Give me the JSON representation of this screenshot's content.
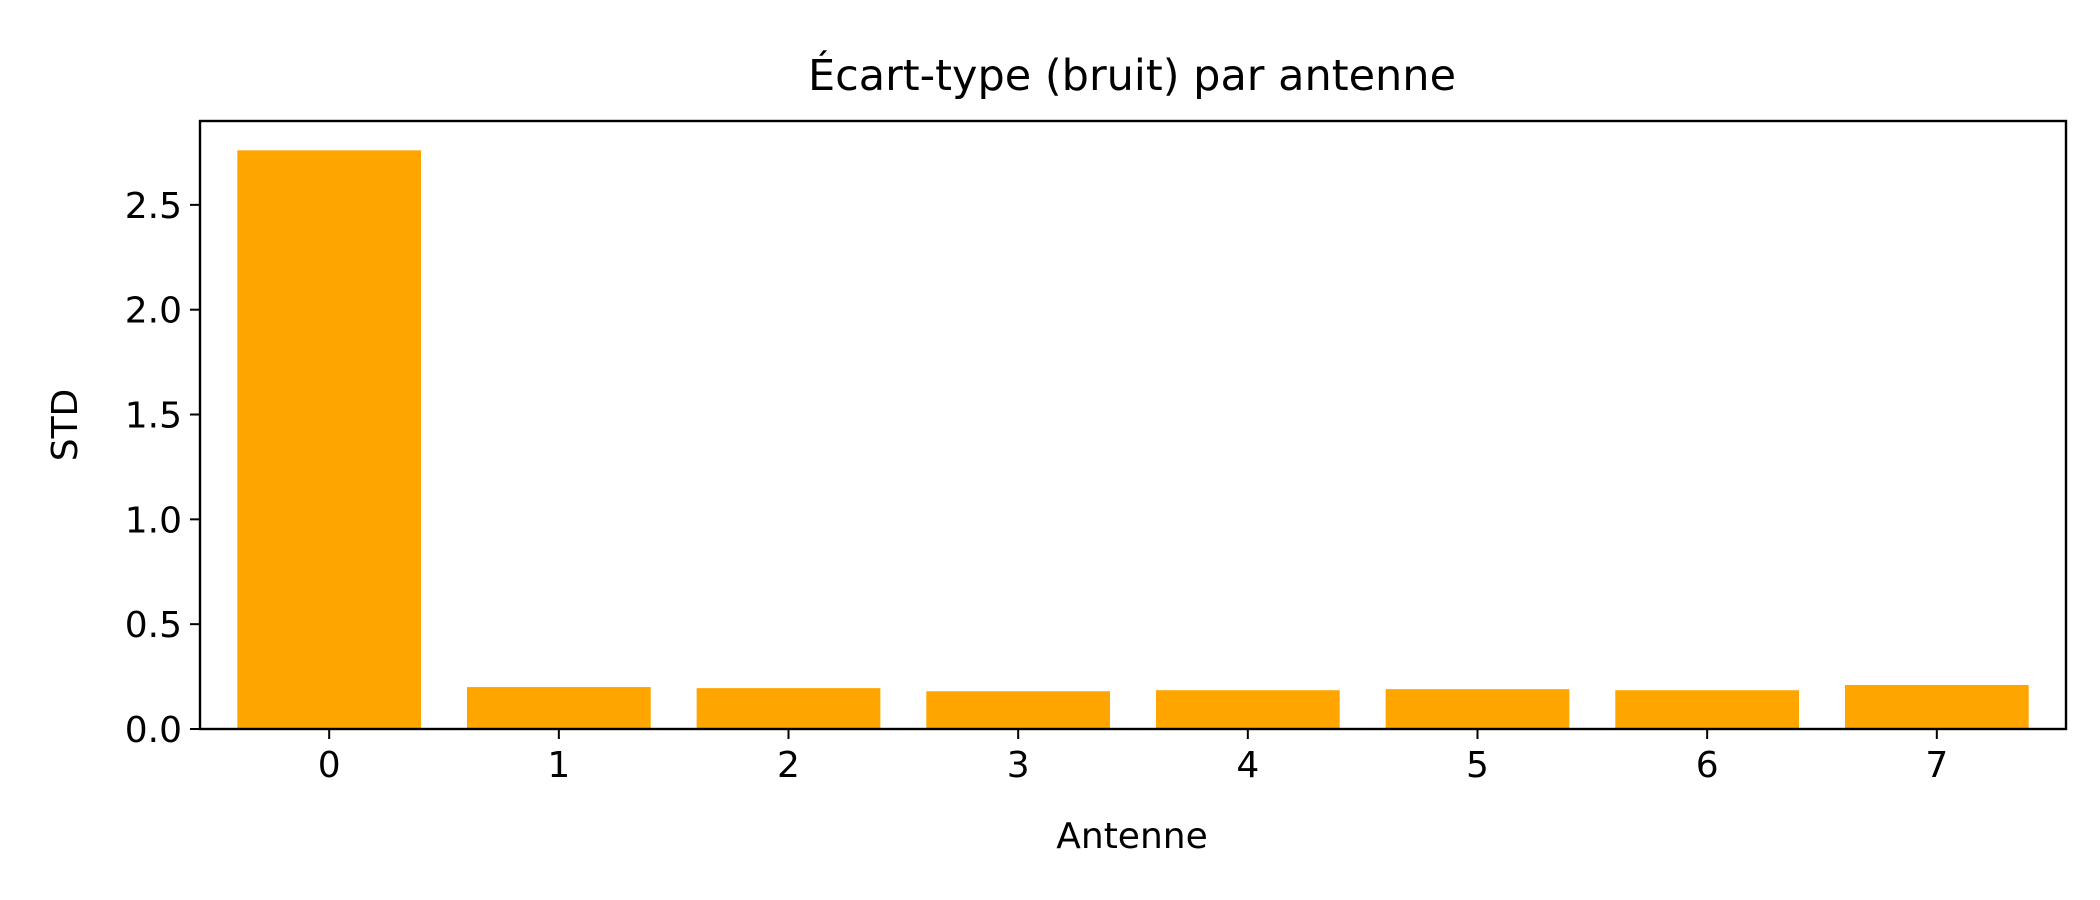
{
  "chart_data": {
    "type": "bar",
    "title": "Écart-type (bruit) par antenne",
    "xlabel": "Antenne",
    "ylabel": "STD",
    "categories": [
      "0",
      "1",
      "2",
      "3",
      "4",
      "5",
      "6",
      "7"
    ],
    "values": [
      2.76,
      0.2,
      0.195,
      0.18,
      0.185,
      0.19,
      0.185,
      0.21
    ],
    "yticks": [
      "0.0",
      "0.5",
      "1.0",
      "1.5",
      "2.0",
      "2.5"
    ],
    "ylim": [
      0,
      2.9
    ],
    "grid": false,
    "colors": {
      "bar": "#FFA500",
      "axis": "#000000",
      "background": "#FFFFFF"
    }
  }
}
